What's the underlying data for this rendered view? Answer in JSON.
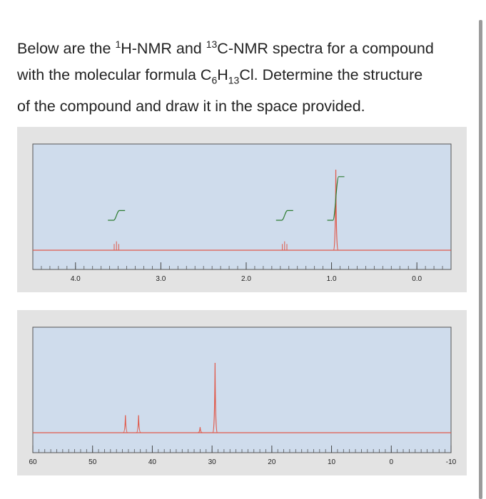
{
  "question": {
    "line1_prefix": "Below are the ",
    "sup1": "1",
    "line1_mid": "H-NMR and ",
    "sup2": "13",
    "line1_suffix": "C-NMR spectra for a compound",
    "line2_prefix": "with the molecular formula C",
    "sub1": "6",
    "h": "H",
    "sub2": "13",
    "line2_suffix": "Cl. Determine the structure",
    "line3": "of the compound and draw it in the space provided."
  },
  "colors": {
    "plot_bg": "#cfdcec",
    "panel_bg": "#e3e3e3",
    "spectrum": "#e05a4b",
    "integral": "#2e7d32",
    "page_text": "#222222"
  },
  "chart_data": [
    {
      "type": "line",
      "title": "",
      "xlabel": "",
      "ylabel": "",
      "x_reversed": true,
      "xlim": [
        4.5,
        -0.4
      ],
      "tick_labels": [
        "4.0",
        "3.0",
        "2.0",
        "1.0",
        "0.0"
      ],
      "tick_values": [
        4.0,
        3.0,
        2.0,
        1.0,
        0.0
      ],
      "peaks": [
        {
          "shift": 3.52,
          "multiplicity": "triplet",
          "relative_height": 0.11,
          "integral": 2
        },
        {
          "shift": 1.55,
          "multiplicity": "triplet",
          "relative_height": 0.11,
          "integral": 2
        },
        {
          "shift": 0.95,
          "multiplicity": "singlet",
          "relative_height": 1.0,
          "integral": 9
        }
      ]
    },
    {
      "type": "line",
      "title": "",
      "xlabel": "",
      "ylabel": "",
      "x_reversed": true,
      "xlim": [
        60,
        -10
      ],
      "tick_labels": [
        "60",
        "50",
        "40",
        "30",
        "20",
        "10",
        "0",
        "-10"
      ],
      "tick_values": [
        60,
        50,
        40,
        30,
        20,
        10,
        0,
        -10
      ],
      "peaks": [
        {
          "shift": 44.5,
          "relative_height": 0.25
        },
        {
          "shift": 42.3,
          "relative_height": 0.25
        },
        {
          "shift": 32.0,
          "relative_height": 0.08
        },
        {
          "shift": 29.5,
          "relative_height": 1.0
        }
      ]
    }
  ]
}
